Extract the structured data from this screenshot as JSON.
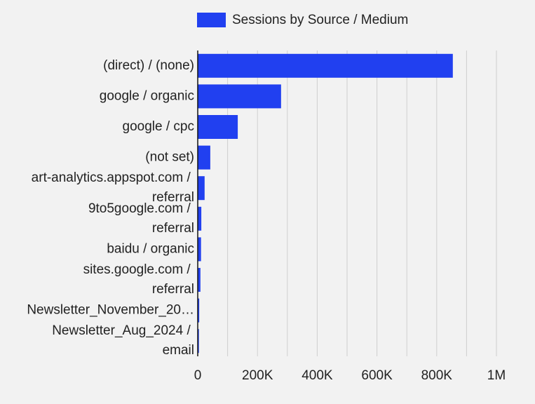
{
  "chart_data": {
    "type": "hbar",
    "legend_label": "Sessions by Source / Medium",
    "color": "#2140f0",
    "categories": [
      "(direct) / (none)",
      "google / organic",
      "google / cpc",
      "(not set)",
      "art-analytics.appspot.com / referral",
      "9to5google.com / referral",
      "baidu / organic",
      "sites.google.com / referral",
      "Newsletter_November_20…",
      "Newsletter_Aug_2024 / email"
    ],
    "values": [
      854000,
      279000,
      134000,
      42000,
      23000,
      12000,
      11000,
      9000,
      5000,
      4000
    ],
    "xlim": [
      0,
      1000000
    ],
    "xticks": [
      0,
      {
        "value": 200000,
        "label": "200K"
      },
      {
        "value": 400000,
        "label": "400K"
      },
      {
        "value": 600000,
        "label": "600K"
      },
      {
        "value": 800000,
        "label": "800K"
      },
      {
        "value": 1000000,
        "label": "1M"
      }
    ],
    "minor_xticks": [
      100000,
      300000,
      500000,
      700000,
      900000
    ],
    "grid": true
  }
}
